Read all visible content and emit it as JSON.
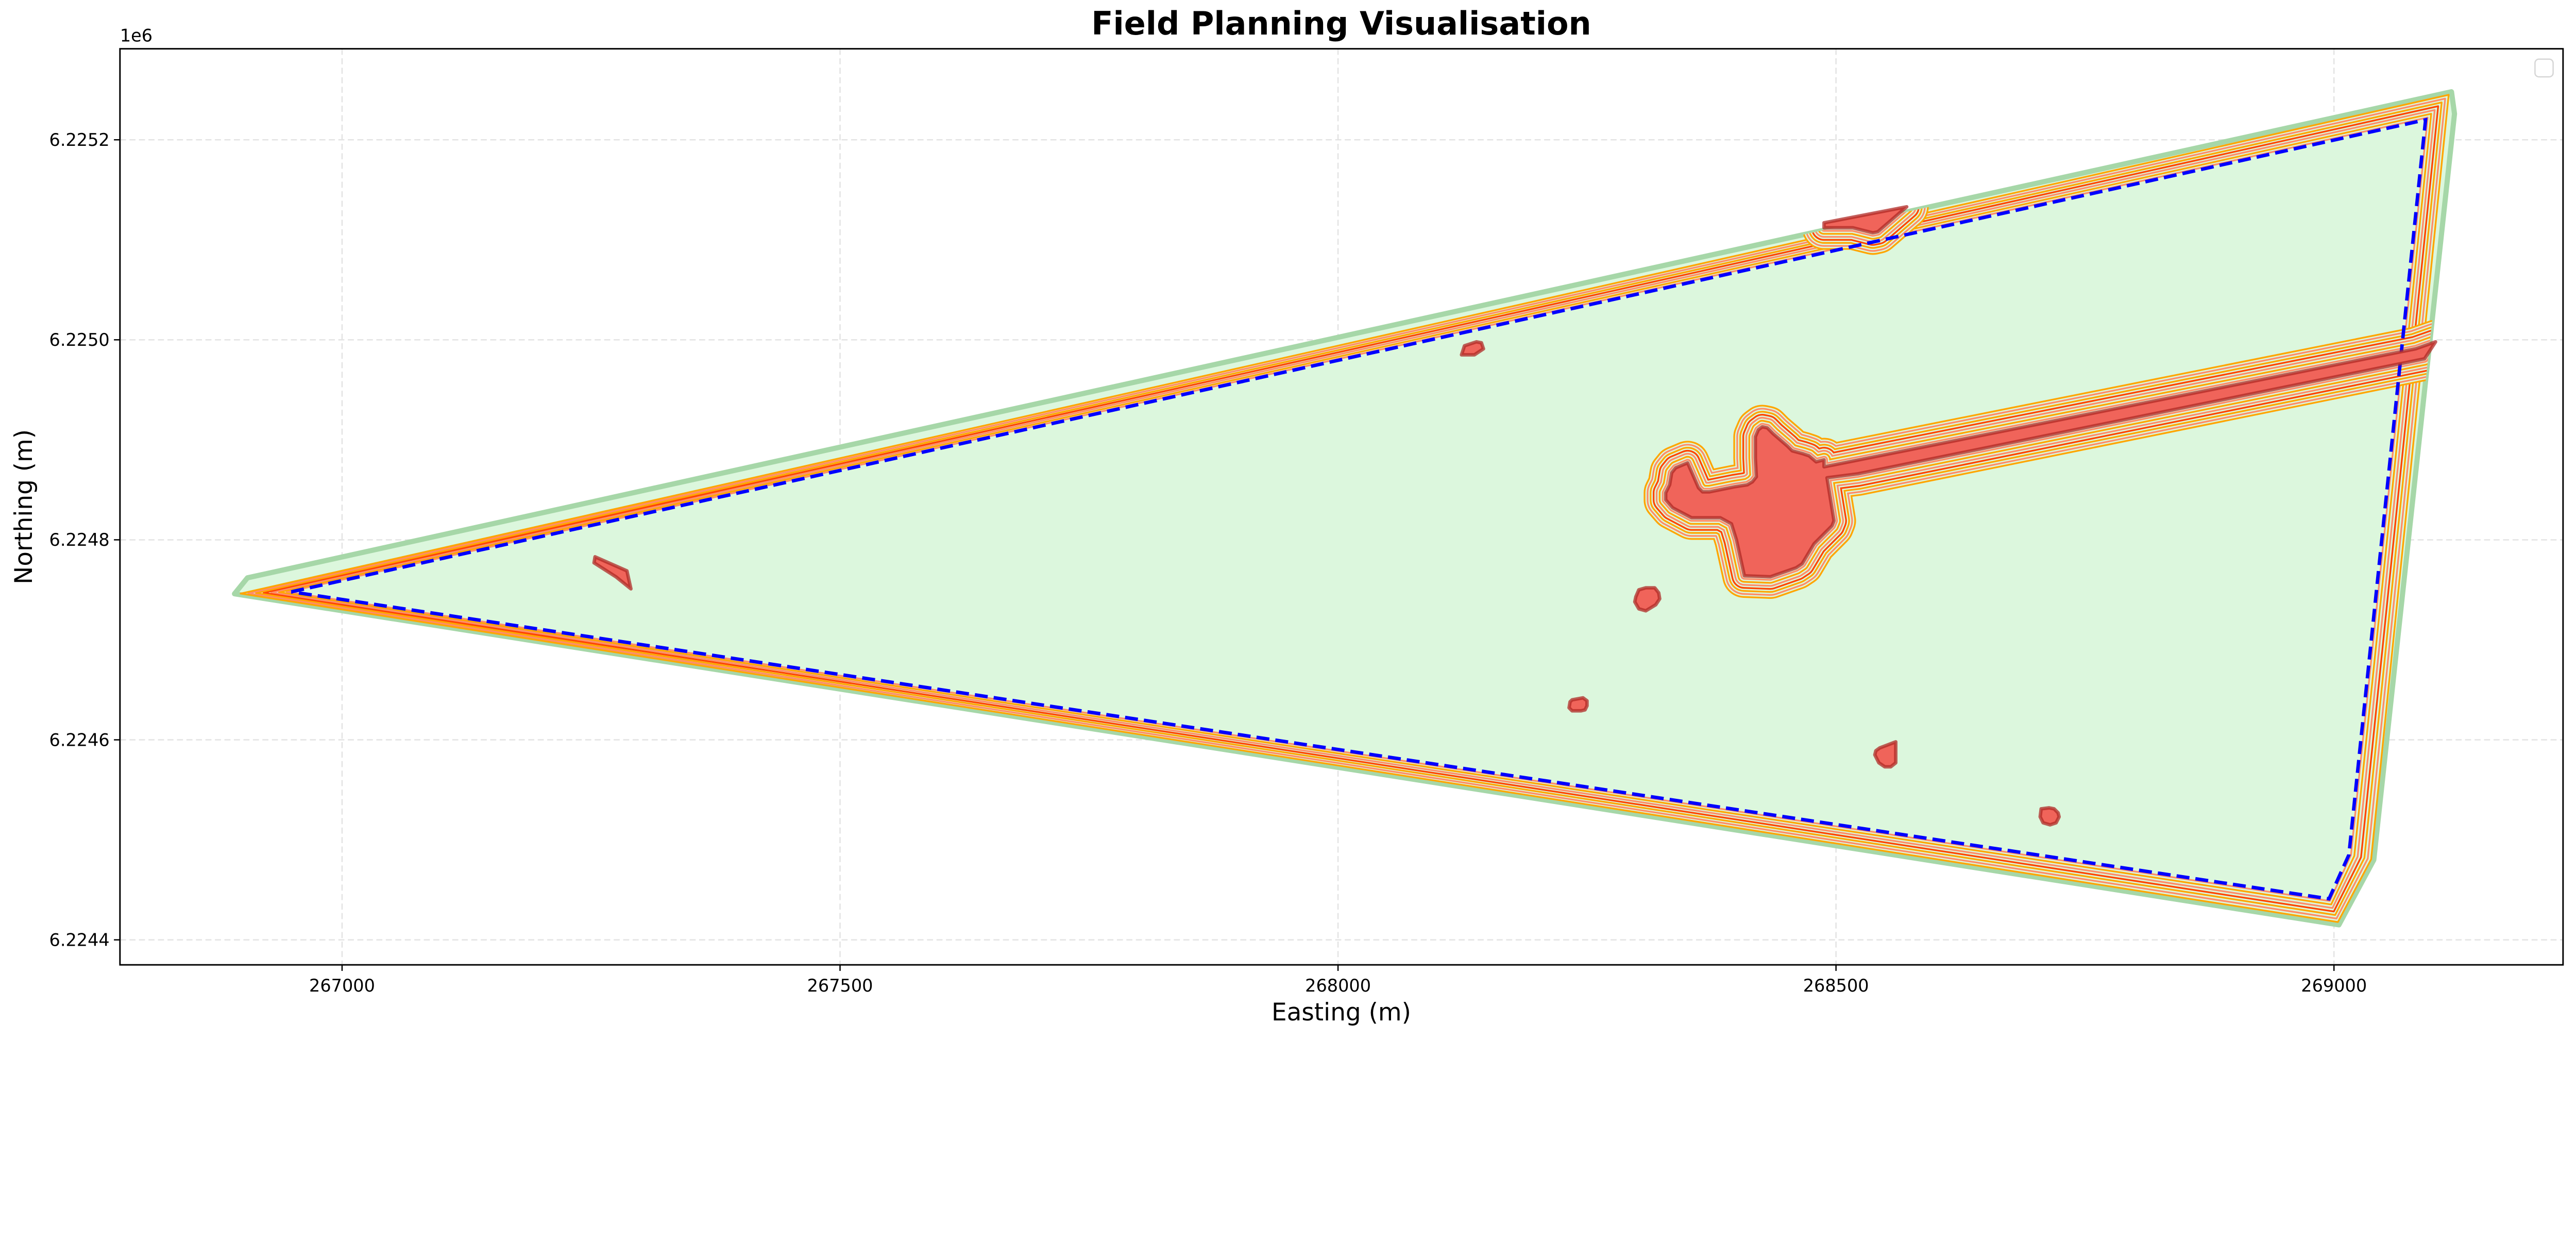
{
  "chart_data": {
    "type": "area",
    "title": "Field Planning Visualisation",
    "xlabel": "Easting (m)",
    "ylabel": "Northing (m)",
    "y_offset_label": "1e6",
    "xlim": [
      266777,
      269230
    ],
    "ylim": [
      6224375,
      6225291
    ],
    "grid": true,
    "legend": {
      "placement": "upper-right",
      "entries": []
    },
    "x_ticks": [
      {
        "value": 267000,
        "label": "267000"
      },
      {
        "value": 267500,
        "label": "267500"
      },
      {
        "value": 268000,
        "label": "268000"
      },
      {
        "value": 268500,
        "label": "268500"
      },
      {
        "value": 269000,
        "label": "269000"
      }
    ],
    "y_ticks": [
      {
        "value": 6224400,
        "label": "6.2244"
      },
      {
        "value": 6224600,
        "label": "6.2246"
      },
      {
        "value": 6224800,
        "label": "6.2248"
      },
      {
        "value": 6225000,
        "label": "6.2250"
      },
      {
        "value": 6225200,
        "label": "6.2252"
      }
    ],
    "colors": {
      "field_fill": "#dcf7dd",
      "outer_edge": "#a6d7a8",
      "field_boundary": "#0000ff",
      "obstacle_fill": "#f0645a",
      "obstacle_edge": "#b02a26",
      "grid": "#e3e3e3",
      "headland_lines": [
        "#ff8c69",
        "#ffa500",
        "#ff8c69",
        "#ff4500",
        "#ffa500",
        "#ff8c69",
        "#ffa500"
      ]
    },
    "outer_boundary": [
      [
        266892,
        6224746
      ],
      [
        266905,
        6224762
      ],
      [
        269118,
        6225248
      ],
      [
        269121,
        6225226
      ],
      [
        269040,
        6224480
      ],
      [
        269005,
        6224415
      ]
    ],
    "field_boundary": [
      [
        266949,
        6224748
      ],
      [
        269092,
        6225220
      ],
      [
        269015,
        6224485
      ],
      [
        268995,
        6224441
      ],
      [
        266949,
        6224748
      ]
    ],
    "obstacles": [
      {
        "buffered": true,
        "points": [
          [
            268351,
            6224877
          ],
          [
            268339,
            6224872
          ],
          [
            268335,
            6224867
          ],
          [
            268333,
            6224855
          ],
          [
            268329,
            6224847
          ],
          [
            268329,
            6224840
          ],
          [
            268336,
            6224832
          ],
          [
            268355,
            6224822
          ],
          [
            268384,
            6224822
          ],
          [
            268395,
            6224816
          ],
          [
            268400,
            6224800
          ],
          [
            268408,
            6224764
          ],
          [
            268434,
            6224763
          ],
          [
            268460,
            6224772
          ],
          [
            268466,
            6224776
          ],
          [
            268478,
            6224796
          ],
          [
            268496,
            6224814
          ],
          [
            268498,
            6224819
          ],
          [
            268491,
            6224862
          ],
          [
            268522,
            6224866
          ],
          [
            269091,
            6224981
          ],
          [
            269102,
            6224998
          ],
          [
            269082,
            6224991
          ],
          [
            268488,
            6224873
          ],
          [
            268488,
            6224880
          ],
          [
            268480,
            6224878
          ],
          [
            268473,
            6224884
          ],
          [
            268467,
            6224886
          ],
          [
            268456,
            6224889
          ],
          [
            268451,
            6224894
          ],
          [
            268437,
            6224906
          ],
          [
            268431,
            6224912
          ],
          [
            268426,
            6224913
          ],
          [
            268422,
            6224910
          ],
          [
            268419,
            6224903
          ],
          [
            268419,
            6224882
          ],
          [
            268420,
            6224863
          ],
          [
            268416,
            6224858
          ],
          [
            268411,
            6224855
          ],
          [
            268398,
            6224853
          ],
          [
            268373,
            6224848
          ],
          [
            268366,
            6224848
          ],
          [
            268362,
            6224852
          ]
        ]
      },
      {
        "buffered": true,
        "points": [
          [
            268488,
            6225117
          ],
          [
            268571,
            6225133
          ],
          [
            268542,
            6225108
          ],
          [
            268537,
            6225107
          ],
          [
            268517,
            6225112
          ],
          [
            268488,
            6225112
          ]
        ]
      },
      {
        "buffered": false,
        "points": [
          [
            268124,
            6224985
          ],
          [
            268127,
            6224994
          ],
          [
            268139,
            6224998
          ],
          [
            268144,
            6224997
          ],
          [
            268146,
            6224991
          ],
          [
            268137,
            6224985
          ]
        ]
      },
      {
        "buffered": false,
        "points": [
          [
            267254,
            6224783
          ],
          [
            267286,
            6224769
          ],
          [
            267290,
            6224751
          ],
          [
            267275,
            6224763
          ],
          [
            267253,
            6224777
          ]
        ]
      },
      {
        "buffered": false,
        "points": [
          [
            268302,
            6224750
          ],
          [
            268309,
            6224752
          ],
          [
            268318,
            6224752
          ],
          [
            268322,
            6224747
          ],
          [
            268323,
            6224741
          ],
          [
            268319,
            6224735
          ],
          [
            268309,
            6224729
          ],
          [
            268302,
            6224731
          ],
          [
            268298,
            6224738
          ],
          [
            268299,
            6224743
          ]
        ]
      },
      {
        "buffered": false,
        "points": [
          [
            268233,
            6224638
          ],
          [
            268235,
            6224640
          ],
          [
            268246,
            6224642
          ],
          [
            268250,
            6224639
          ],
          [
            268250,
            6224634
          ],
          [
            268248,
            6224630
          ],
          [
            268244,
            6224629
          ],
          [
            268235,
            6224629
          ],
          [
            268232,
            6224632
          ]
        ]
      },
      {
        "buffered": false,
        "points": [
          [
            268544,
            6224592
          ],
          [
            268560,
            6224598
          ],
          [
            268560,
            6224577
          ],
          [
            268555,
            6224573
          ],
          [
            268549,
            6224573
          ],
          [
            268543,
            6224577
          ],
          [
            268539,
            6224585
          ],
          [
            268540,
            6224589
          ]
        ]
      },
      {
        "buffered": false,
        "points": [
          [
            268706,
            6224531
          ],
          [
            268714,
            6224532
          ],
          [
            268719,
            6224531
          ],
          [
            268723,
            6224527
          ],
          [
            268724,
            6224523
          ],
          [
            268721,
            6224517
          ],
          [
            268715,
            6224515
          ],
          [
            268708,
            6224517
          ],
          [
            268705,
            6224523
          ]
        ]
      }
    ]
  }
}
